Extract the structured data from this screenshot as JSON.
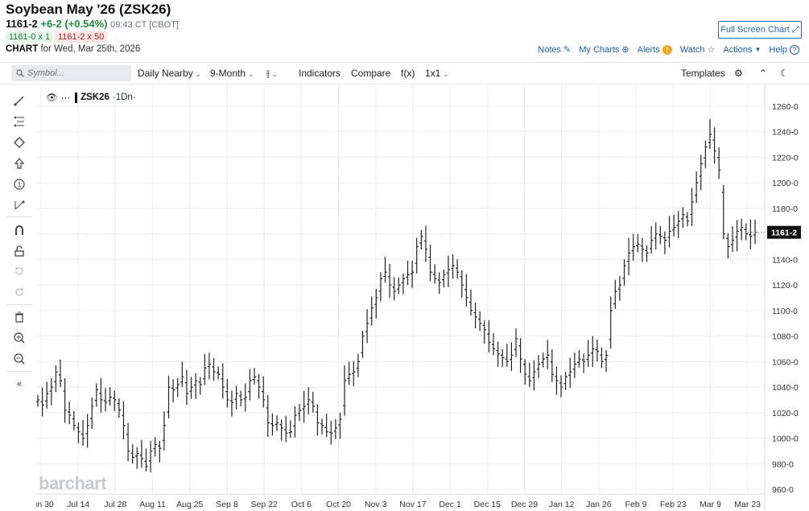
{
  "header": {
    "title": "Soybean May '26 (ZSK26)",
    "last": "1161-2",
    "change": "+6-2 (+0.54%)",
    "time": "09:43 CT [CBOT]",
    "bid": "1161-0 x 1",
    "ask": "1161-2 x 50",
    "chart_label": "CHART",
    "chart_date": "for Wed, Mar 25th, 2026",
    "fullscreen": "Full Screen Chart"
  },
  "links": {
    "notes": "Notes",
    "my_charts": "My Charts",
    "alerts": "Alerts",
    "watch": "Watch",
    "actions": "Actions",
    "help": "Help"
  },
  "toolbar": {
    "symbol_placeholder": "Symbol...",
    "period": "Daily Nearby",
    "range": "9-Month",
    "indicators": "Indicators",
    "compare": "Compare",
    "fx": "f(x)",
    "layout": "1x1",
    "templates": "Templates"
  },
  "legend": {
    "symbol": "ZSK26",
    "interval": "·1Dn·"
  },
  "watermark": "barchart",
  "colors": {
    "price_tag_bg": "#111111",
    "bar": "#222222",
    "grid": "#ebedf0",
    "link": "#1f5fa8",
    "up": "#1a8f3c",
    "down": "#b42323"
  },
  "left_tools": [
    "draw-line-icon",
    "fib-icon",
    "shape-icon",
    "arrow-icon",
    "counter-icon",
    "measure-icon",
    "magnet-icon",
    "lock-icon",
    "undo-icon",
    "redo-icon",
    "trash-icon",
    "zoom-in-icon",
    "zoom-out-icon",
    "collapse-icon"
  ],
  "chart_data": {
    "type": "ohlc",
    "y_axis": {
      "min": 960,
      "max": 1260,
      "step": 20,
      "label_suffix": "-0"
    },
    "x_ticks": [
      "Jun 30",
      "Jul 14",
      "Jul 28",
      "Aug 11",
      "Aug 25",
      "Sep 8",
      "Sep 22",
      "Oct 6",
      "Oct 20",
      "Nov 3",
      "Nov 17",
      "Dec 1",
      "Dec 15",
      "Dec 29",
      "Jan 12",
      "Jan 26",
      "Feb 9",
      "Feb 23",
      "Mar 9",
      "Mar 23"
    ],
    "last_price": 1161.25,
    "last_label": "1161-2",
    "closes": [
      1030,
      1026,
      1035,
      1040,
      1052,
      1045,
      1022,
      1018,
      1010,
      1005,
      1000,
      1010,
      1025,
      1038,
      1030,
      1028,
      1032,
      1030,
      1022,
      1010,
      990,
      985,
      988,
      984,
      978,
      990,
      995,
      992,
      1010,
      1040,
      1038,
      1042,
      1048,
      1035,
      1040,
      1045,
      1042,
      1055,
      1058,
      1052,
      1050,
      1040,
      1030,
      1028,
      1035,
      1030,
      1032,
      1045,
      1048,
      1040,
      1030,
      1012,
      1010,
      1012,
      1008,
      1004,
      1005,
      1018,
      1022,
      1025,
      1030,
      1025,
      1012,
      1010,
      1005,
      1004,
      1008,
      1015,
      1045,
      1050,
      1052,
      1060,
      1080,
      1090,
      1102,
      1110,
      1125,
      1130,
      1120,
      1115,
      1120,
      1125,
      1128,
      1130,
      1150,
      1158,
      1148,
      1130,
      1125,
      1122,
      1128,
      1132,
      1135,
      1130,
      1120,
      1110,
      1100,
      1095,
      1090,
      1085,
      1075,
      1070,
      1066,
      1063,
      1060,
      1065,
      1078,
      1062,
      1050,
      1045,
      1052,
      1058,
      1062,
      1065,
      1050,
      1045,
      1040,
      1048,
      1052,
      1058,
      1062,
      1060,
      1065,
      1070,
      1068,
      1060,
      1065,
      1100,
      1115,
      1120,
      1135,
      1145,
      1150,
      1152,
      1148,
      1145,
      1155,
      1160,
      1158,
      1155,
      1162,
      1165,
      1170,
      1175,
      1170,
      1185,
      1200,
      1215,
      1228,
      1238,
      1225,
      1210,
      1160,
      1150,
      1155,
      1162,
      1165,
      1160,
      1158,
      1161.25
    ]
  }
}
